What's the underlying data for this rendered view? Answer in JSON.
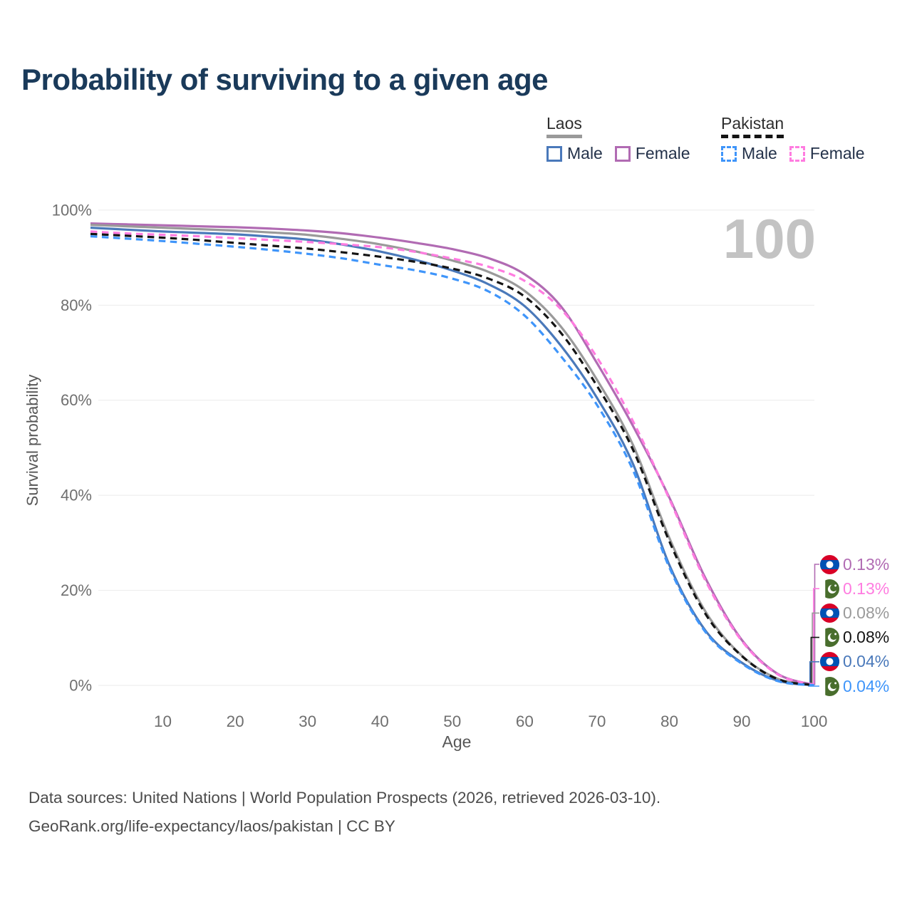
{
  "title": "Probability of surviving to a given age",
  "watermark_age": "100",
  "legend": {
    "groups": [
      {
        "id": "laos",
        "label": "Laos",
        "line_style": "solid",
        "underline_color": "#9a9a9a",
        "items": [
          {
            "series": "laos-male",
            "label": "Male"
          },
          {
            "series": "laos-female",
            "label": "Female"
          }
        ]
      },
      {
        "id": "pakistan",
        "label": "Pakistan",
        "line_style": "dashed",
        "underline_color": "#141414",
        "items": [
          {
            "series": "pakistan-male",
            "label": "Male"
          },
          {
            "series": "pakistan-female",
            "label": "Female"
          }
        ]
      }
    ]
  },
  "axes": {
    "x_label": "Age",
    "y_label": "Survival probability",
    "x_ticks": [
      10,
      20,
      30,
      40,
      50,
      60,
      70,
      80,
      90,
      100
    ],
    "y_ticks": [
      {
        "value": 0,
        "label": "0%"
      },
      {
        "value": 20,
        "label": "20%"
      },
      {
        "value": 40,
        "label": "40%"
      },
      {
        "value": 60,
        "label": "60%"
      },
      {
        "value": 80,
        "label": "80%"
      },
      {
        "value": 100,
        "label": "100%"
      }
    ]
  },
  "chart_data": {
    "type": "line",
    "title": "Probability of surviving to a given age",
    "xlabel": "Age",
    "ylabel": "Survival probability",
    "xlim": [
      0,
      100
    ],
    "ylim": [
      0,
      100
    ],
    "grid": true,
    "legend_position": "top-right",
    "current_age_frame": 100,
    "series": [
      {
        "id": "laos-female",
        "name": "Laos Female",
        "country": "Laos",
        "sex": "Female",
        "color": "#b16bb3",
        "dash": "solid",
        "flag": "laos",
        "end_label": "0.13%",
        "points": [
          [
            0,
            97.2
          ],
          [
            5,
            97.0
          ],
          [
            10,
            96.8
          ],
          [
            15,
            96.6
          ],
          [
            20,
            96.4
          ],
          [
            25,
            96.1
          ],
          [
            30,
            95.7
          ],
          [
            35,
            95.1
          ],
          [
            40,
            94.2
          ],
          [
            45,
            93.1
          ],
          [
            50,
            91.8
          ],
          [
            55,
            89.9
          ],
          [
            60,
            86.5
          ],
          [
            65,
            79.8
          ],
          [
            70,
            67.8
          ],
          [
            75,
            54.5
          ],
          [
            80,
            39.5
          ],
          [
            85,
            22.5
          ],
          [
            90,
            9.6
          ],
          [
            95,
            2.4
          ],
          [
            100,
            0.13
          ]
        ]
      },
      {
        "id": "laos-all",
        "name": "Laos",
        "country": "Laos",
        "sex": "Both",
        "color": "#9a9a9a",
        "dash": "solid",
        "flag": "laos",
        "end_label": "0.08%",
        "points": [
          [
            0,
            96.9
          ],
          [
            5,
            96.6
          ],
          [
            10,
            96.3
          ],
          [
            15,
            96.0
          ],
          [
            20,
            95.7
          ],
          [
            25,
            95.3
          ],
          [
            30,
            94.8
          ],
          [
            35,
            93.9
          ],
          [
            40,
            92.8
          ],
          [
            45,
            91.3
          ],
          [
            50,
            89.4
          ],
          [
            55,
            87.0
          ],
          [
            60,
            83.0
          ],
          [
            65,
            75.5
          ],
          [
            70,
            64.3
          ],
          [
            75,
            50.5
          ],
          [
            80,
            31.0
          ],
          [
            85,
            15.5
          ],
          [
            90,
            6.3
          ],
          [
            95,
            1.4
          ],
          [
            100,
            0.08
          ]
        ]
      },
      {
        "id": "laos-male",
        "name": "Laos Male",
        "country": "Laos",
        "sex": "Male",
        "color": "#4a79ba",
        "dash": "solid",
        "flag": "laos",
        "end_label": "0.04%",
        "points": [
          [
            0,
            96.3
          ],
          [
            5,
            95.9
          ],
          [
            10,
            95.5
          ],
          [
            15,
            95.2
          ],
          [
            20,
            94.9
          ],
          [
            25,
            94.4
          ],
          [
            30,
            93.8
          ],
          [
            35,
            92.7
          ],
          [
            40,
            91.3
          ],
          [
            45,
            89.5
          ],
          [
            50,
            87.3
          ],
          [
            55,
            84.4
          ],
          [
            60,
            79.8
          ],
          [
            65,
            71.5
          ],
          [
            70,
            60.5
          ],
          [
            75,
            46.5
          ],
          [
            80,
            25.3
          ],
          [
            85,
            11.5
          ],
          [
            90,
            4.8
          ],
          [
            95,
            1.0
          ],
          [
            100,
            0.04
          ]
        ]
      },
      {
        "id": "pakistan-female",
        "name": "Pakistan Female",
        "country": "Pakistan",
        "sex": "Female",
        "color": "#ff7ce0",
        "dash": "dashed",
        "flag": "pakistan",
        "end_label": "0.13%",
        "points": [
          [
            0,
            95.5
          ],
          [
            5,
            95.1
          ],
          [
            10,
            94.8
          ],
          [
            15,
            94.5
          ],
          [
            20,
            94.1
          ],
          [
            25,
            93.7
          ],
          [
            30,
            93.3
          ],
          [
            35,
            92.8
          ],
          [
            40,
            92.2
          ],
          [
            45,
            91.2
          ],
          [
            50,
            89.8
          ],
          [
            55,
            88.1
          ],
          [
            60,
            85.1
          ],
          [
            65,
            79.2
          ],
          [
            70,
            69.0
          ],
          [
            75,
            55.5
          ],
          [
            80,
            39.2
          ],
          [
            85,
            22.0
          ],
          [
            90,
            9.4
          ],
          [
            95,
            2.3
          ],
          [
            100,
            0.13
          ]
        ]
      },
      {
        "id": "pakistan-all",
        "name": "Pakistan",
        "country": "Pakistan",
        "sex": "Both",
        "color": "#141414",
        "dash": "dashed",
        "flag": "pakistan",
        "end_label": "0.08%",
        "points": [
          [
            0,
            95.0
          ],
          [
            5,
            94.6
          ],
          [
            10,
            94.2
          ],
          [
            15,
            93.7
          ],
          [
            20,
            93.1
          ],
          [
            25,
            92.5
          ],
          [
            30,
            91.9
          ],
          [
            35,
            91.1
          ],
          [
            40,
            90.2
          ],
          [
            45,
            89.1
          ],
          [
            50,
            87.7
          ],
          [
            55,
            85.6
          ],
          [
            60,
            81.8
          ],
          [
            65,
            74.2
          ],
          [
            70,
            63.0
          ],
          [
            75,
            49.5
          ],
          [
            80,
            30.3
          ],
          [
            85,
            15.0
          ],
          [
            90,
            6.2
          ],
          [
            95,
            1.3
          ],
          [
            100,
            0.08
          ]
        ]
      },
      {
        "id": "pakistan-male",
        "name": "Pakistan Male",
        "country": "Pakistan",
        "sex": "Male",
        "color": "#3f95fa",
        "dash": "dashed",
        "flag": "pakistan",
        "end_label": "0.04%",
        "points": [
          [
            0,
            94.5
          ],
          [
            5,
            94.0
          ],
          [
            10,
            93.5
          ],
          [
            15,
            92.9
          ],
          [
            20,
            92.3
          ],
          [
            25,
            91.6
          ],
          [
            30,
            90.8
          ],
          [
            35,
            89.8
          ],
          [
            40,
            88.5
          ],
          [
            45,
            87.3
          ],
          [
            50,
            85.6
          ],
          [
            55,
            82.9
          ],
          [
            60,
            77.8
          ],
          [
            65,
            69.3
          ],
          [
            70,
            59.0
          ],
          [
            75,
            45.2
          ],
          [
            80,
            24.8
          ],
          [
            85,
            11.2
          ],
          [
            90,
            4.6
          ],
          [
            95,
            0.9
          ],
          [
            100,
            0.04
          ]
        ]
      }
    ],
    "end_label_order": [
      "laos-female",
      "pakistan-female",
      "laos-all",
      "pakistan-all",
      "laos-male",
      "pakistan-male"
    ]
  },
  "footer": {
    "line1": "Data sources: United Nations | World Population Prospects (2026, retrieved 2026-03-10).",
    "line2": "GeoRank.org/life-expectancy/laos/pakistan | CC BY"
  }
}
